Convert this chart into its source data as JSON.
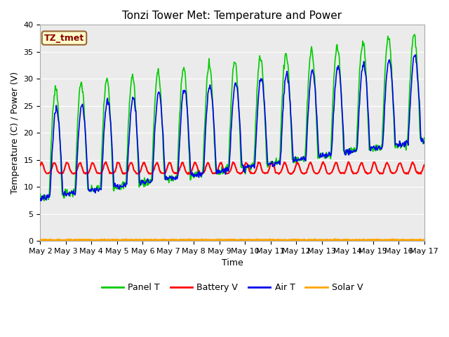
{
  "title": "Tonzi Tower Met: Temperature and Power",
  "xlabel": "Time",
  "ylabel": "Temperature (C) / Power (V)",
  "ylim": [
    0,
    40
  ],
  "n_days": 15,
  "x_tick_labels": [
    "May 2",
    "May 3",
    "May 4",
    "May 5",
    "May 6",
    "May 7",
    "May 8",
    "May 9",
    "May 10",
    "May 11",
    "May 12",
    "May 13",
    "May 14",
    "May 15",
    "May 16",
    "May 17"
  ],
  "annotation_text": "TZ_tmet",
  "annotation_color": "#8B0000",
  "annotation_bg": "#FFFFCC",
  "annotation_border": "#996633",
  "bg_color": "#EBEBEB",
  "grid_color": "#FFFFFF",
  "line_colors": {
    "panel": "#00CC00",
    "battery": "#FF0000",
    "air": "#0000EE",
    "solar": "#FFA500"
  },
  "line_widths": {
    "panel": 1.2,
    "battery": 1.5,
    "air": 1.2,
    "solar": 2.0
  },
  "legend_labels": [
    "Panel T",
    "Battery V",
    "Air T",
    "Solar V"
  ],
  "title_fontsize": 11,
  "axis_label_fontsize": 9,
  "tick_fontsize": 8
}
